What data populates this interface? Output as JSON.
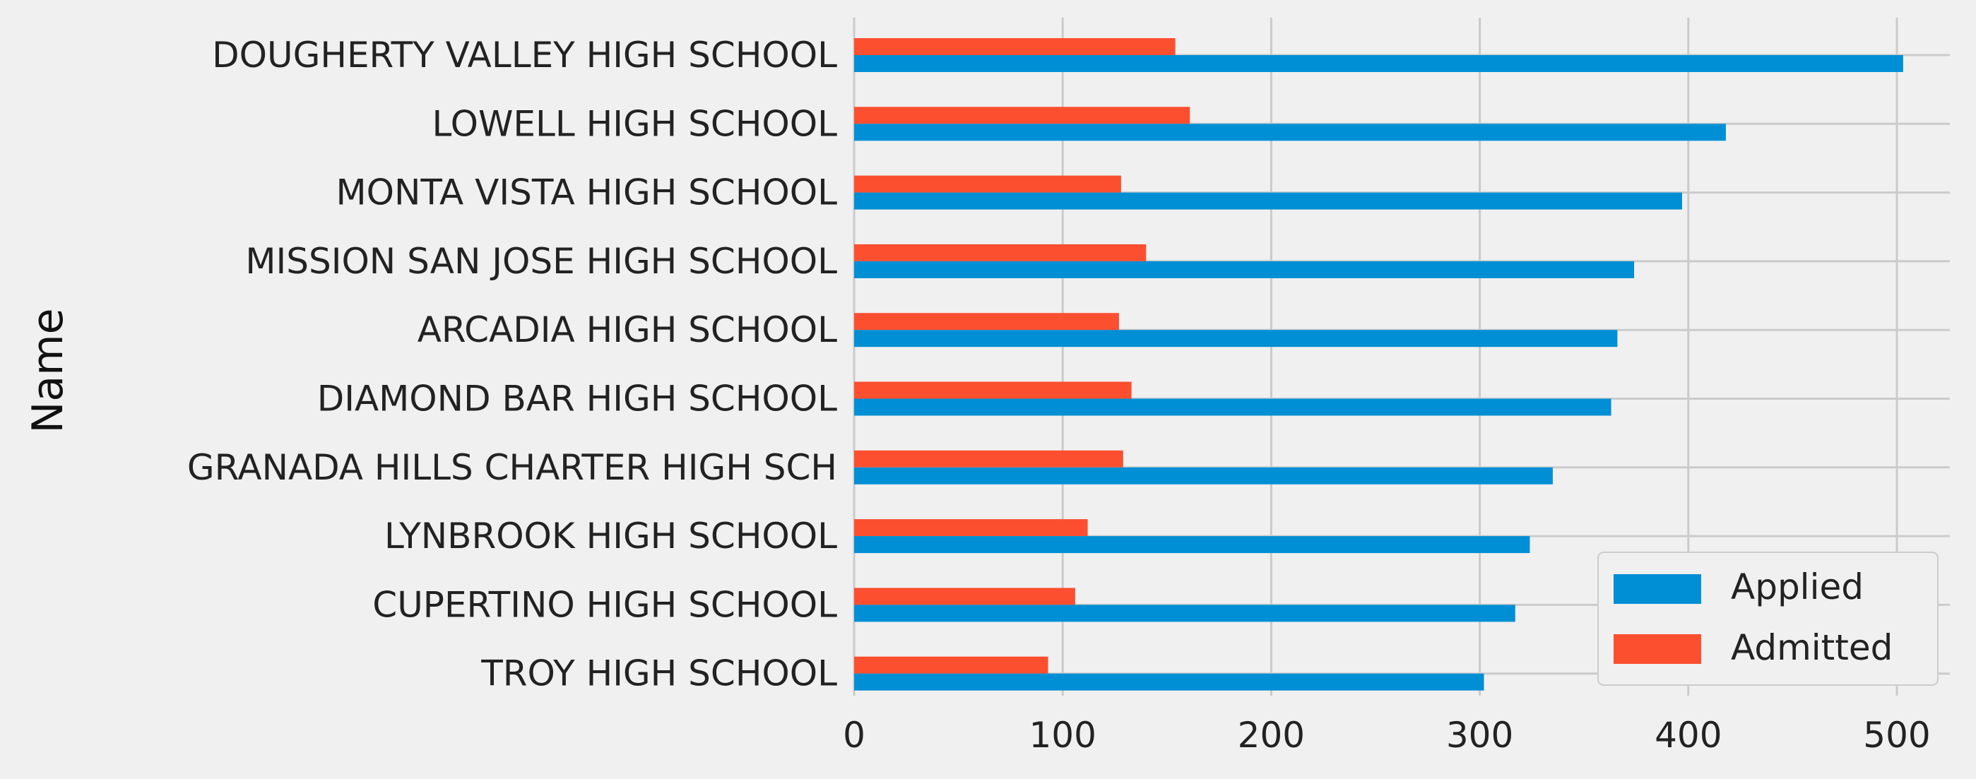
{
  "chart_data": {
    "type": "bar",
    "orientation": "horizontal",
    "ylabel": "Name",
    "xlabel": "",
    "xlim": [
      0,
      525
    ],
    "xticks": [
      0,
      100,
      200,
      300,
      400,
      500
    ],
    "grid": true,
    "legend_position": "bottom-right",
    "categories": [
      "DOUGHERTY VALLEY HIGH SCHOOL",
      "LOWELL HIGH SCHOOL",
      "MONTA VISTA HIGH SCHOOL",
      "MISSION SAN JOSE HIGH SCHOOL",
      "ARCADIA HIGH SCHOOL",
      "DIAMOND BAR HIGH SCHOOL",
      "GRANADA HILLS CHARTER HIGH SCH",
      "LYNBROOK HIGH SCHOOL",
      "CUPERTINO HIGH SCHOOL",
      "TROY HIGH SCHOOL"
    ],
    "series": [
      {
        "name": "Applied",
        "color": "#008fd5",
        "values": [
          503,
          418,
          397,
          374,
          366,
          363,
          335,
          324,
          317,
          302
        ]
      },
      {
        "name": "Admitted",
        "color": "#fc4f30",
        "values": [
          154,
          161,
          128,
          140,
          127,
          133,
          129,
          112,
          106,
          93
        ]
      }
    ]
  }
}
